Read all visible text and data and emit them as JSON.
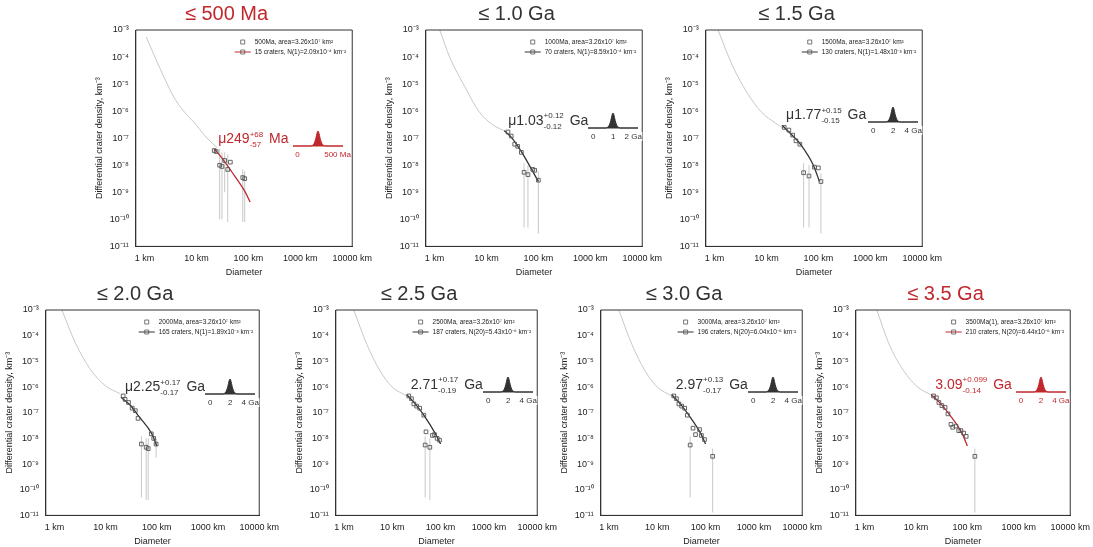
{
  "chart_data": [
    {
      "type": "scatter",
      "title": "≤ 500 Ma",
      "xlabel": "Diameter",
      "ylabel": "Differential crater density, km⁻³",
      "log": "xy",
      "legend": "top right",
      "xlim": [
        0.68,
        10000
      ],
      "ylim": [
        1e-11,
        0.001
      ],
      "xticks": [
        {
          "value": 1,
          "label": "1 km"
        },
        {
          "value": 10,
          "label": "10 km"
        },
        {
          "value": 100,
          "label": "100 km"
        },
        {
          "value": 1000,
          "label": "1000 km"
        },
        {
          "value": 10000,
          "label": "10000 km"
        }
      ],
      "yticks": [
        {
          "value": 1e-11,
          "label": "10⁻¹¹"
        },
        {
          "value": 1e-10,
          "label": "10⁻¹⁰"
        },
        {
          "value": 1e-09,
          "label": "10⁻⁹"
        },
        {
          "value": 1e-08,
          "label": "10⁻⁸"
        },
        {
          "value": 1e-07,
          "label": "10⁻⁷"
        },
        {
          "value": 1e-06,
          "label": "10⁻⁶"
        },
        {
          "value": 1e-05,
          "label": "10⁻⁵"
        },
        {
          "value": 0.0001,
          "label": "10⁻⁴"
        },
        {
          "value": 0.001,
          "label": "10⁻³"
        }
      ],
      "annotations": [
        "μ249$^{+68}$$_{-57}$ Ma",
        "0",
        "500 Ma"
      ],
      "series": [
        {
          "name": "500Ma, area=3.26x10⁷ km²",
          "color": "#555555",
          "marker": "square",
          "x": [
            22,
            24,
            28,
            31,
            35,
            40,
            45,
            78,
            85
          ],
          "values": [
            3.5e-08,
            3.2e-08,
            1e-08,
            9e-09,
            1.5e-08,
            7e-09,
            1.3e-08,
            3.5e-09,
            3.2e-09
          ],
          "errors": [
            null,
            null,
            [
              1e-10,
              4e-08
            ],
            [
              1e-10,
              3e-08
            ],
            [
              1e-09,
              3e-08
            ],
            [
              8e-11,
              2.5e-08
            ],
            null,
            [
              8e-11,
              7e-09
            ],
            [
              8e-11,
              6e-09
            ]
          ]
        },
        {
          "name": "15 craters, N(1)=2.09x10⁻⁴ km⁻²",
          "type": "line",
          "color": "#c0282d",
          "x": [
            22,
            30,
            47,
            85,
            108
          ],
          "values": [
            4e-08,
            2e-08,
            6e-09,
            1.1e-09,
            4.4e-10
          ]
        },
        {
          "type": "line",
          "color": "#c8c8c8",
          "x": [
            1.08,
            2,
            4,
            10,
            16,
            25
          ],
          "values": [
            0.00055,
            3.7e-05,
            2.5e-06,
            3e-07,
            1e-07,
            4.5e-08
          ]
        }
      ]
    },
    {
      "type": "scatter",
      "title": "≤ 1.0 Ga",
      "xlabel": "Diameter",
      "ylabel": "Differential crater density, km⁻³",
      "log": "xy",
      "legend": "top right",
      "xlim": [
        0.68,
        10000
      ],
      "ylim": [
        1e-11,
        0.001
      ],
      "xticks": [
        {
          "value": 1,
          "label": "1 km"
        },
        {
          "value": 10,
          "label": "10 km"
        },
        {
          "value": 100,
          "label": "100 km"
        },
        {
          "value": 1000,
          "label": "1000 km"
        },
        {
          "value": 10000,
          "label": "10000 km"
        }
      ],
      "yticks": [
        {
          "value": 1e-11,
          "label": "10⁻¹¹"
        },
        {
          "value": 1e-10,
          "label": "10⁻¹⁰"
        },
        {
          "value": 1e-09,
          "label": "10⁻⁹"
        },
        {
          "value": 1e-08,
          "label": "10⁻⁸"
        },
        {
          "value": 1e-07,
          "label": "10⁻⁷"
        },
        {
          "value": 1e-06,
          "label": "10⁻⁶"
        },
        {
          "value": 1e-05,
          "label": "10⁻⁵"
        },
        {
          "value": 0.0001,
          "label": "10⁻⁴"
        },
        {
          "value": 0.001,
          "label": "10⁻³"
        }
      ],
      "annotations": [
        "μ1.03$^{+0.12}$$_{-0.12}$ Ga",
        "0",
        "1",
        "2 Ga"
      ],
      "series": [
        {
          "name": "1000Ma, area=3.26x10⁷ km²",
          "color": "#555555",
          "marker": "square",
          "x": [
            26,
            30,
            35,
            40,
            47,
            53,
            63,
            78,
            85,
            100
          ],
          "values": [
            1.7e-07,
            1.2e-07,
            6e-08,
            5e-08,
            3e-08,
            5.5e-09,
            4.5e-09,
            7e-09,
            6.5e-09,
            2.8e-09
          ],
          "errors": [
            null,
            null,
            null,
            null,
            null,
            [
              5e-11,
              1.2e-08
            ],
            [
              5e-11,
              1e-08
            ],
            null,
            null,
            [
              3e-11,
              6e-09
            ]
          ]
        },
        {
          "name": "70 craters, N(1)=8.59x10⁻⁴ km⁻²",
          "type": "line",
          "color": "#333333",
          "x": [
            22,
            30,
            47,
            100
          ],
          "values": [
            1.9e-07,
            1.1e-07,
            3.2e-08,
            2.5e-09
          ]
        },
        {
          "type": "line",
          "color": "#c8c8c8",
          "x": [
            1.26,
            2,
            3.8,
            7.1,
            13,
            25
          ],
          "values": [
            0.001,
            9e-05,
            8.3e-06,
            1e-06,
            3.2e-07,
            1.7e-07
          ]
        }
      ]
    },
    {
      "type": "scatter",
      "title": "≤ 1.5 Ga",
      "xlabel": "Diameter",
      "ylabel": "Differential crater density, km⁻³",
      "log": "xy",
      "legend": "top right",
      "xlim": [
        0.68,
        10000
      ],
      "ylim": [
        1e-11,
        0.001
      ],
      "xticks": [
        {
          "value": 1,
          "label": "1 km"
        },
        {
          "value": 10,
          "label": "10 km"
        },
        {
          "value": 100,
          "label": "100 km"
        },
        {
          "value": 1000,
          "label": "1000 km"
        },
        {
          "value": 10000,
          "label": "10000 km"
        }
      ],
      "yticks": [
        {
          "value": 1e-11,
          "label": "10⁻¹¹"
        },
        {
          "value": 1e-10,
          "label": "10⁻¹⁰"
        },
        {
          "value": 1e-09,
          "label": "10⁻⁹"
        },
        {
          "value": 1e-08,
          "label": "10⁻⁸"
        },
        {
          "value": 1e-07,
          "label": "10⁻⁷"
        },
        {
          "value": 1e-06,
          "label": "10⁻⁶"
        },
        {
          "value": 1e-05,
          "label": "10⁻⁵"
        },
        {
          "value": 0.0001,
          "label": "10⁻⁴"
        },
        {
          "value": 0.001,
          "label": "10⁻³"
        }
      ],
      "annotations": [
        "μ1.77$^{+0.15}$$_{-0.15}$ Ga",
        "0",
        "2",
        "4 Ga"
      ],
      "series": [
        {
          "name": "1500Ma, area=3.26x10⁷ km²",
          "color": "#555555",
          "marker": "square",
          "x": [
            22,
            27,
            32,
            37,
            44,
            52,
            66,
            84,
            100,
            112
          ],
          "values": [
            2.5e-07,
            2e-07,
            1.3e-07,
            8e-08,
            6e-08,
            5.3e-09,
            4e-09,
            8.5e-09,
            8e-09,
            2.5e-09
          ],
          "errors": [
            null,
            null,
            null,
            null,
            null,
            [
              5e-11,
              1.2e-08
            ],
            [
              5e-11,
              1e-08
            ],
            null,
            null,
            [
              3e-11,
              5e-09
            ]
          ]
        },
        {
          "name": "130 craters, N(1)=1.48x10⁻³ km⁻²",
          "type": "line",
          "color": "#333333",
          "x": [
            20,
            30,
            45,
            80,
            105
          ],
          "values": [
            3e-07,
            1.4e-07,
            6e-08,
            1e-08,
            2.5e-09
          ]
        },
        {
          "type": "line",
          "color": "#c8c8c8",
          "x": [
            1.17,
            2.2,
            4.3,
            8.1,
            15,
            21
          ],
          "values": [
            0.001,
            5e-05,
            4.6e-06,
            9e-07,
            3.6e-07,
            2.3e-07
          ]
        }
      ]
    },
    {
      "type": "scatter",
      "title": "≤ 2.0 Ga",
      "xlabel": "Diameter",
      "ylabel": "Differential crater density, km⁻³",
      "log": "xy",
      "legend": "top right",
      "xlim": [
        0.68,
        10000
      ],
      "ylim": [
        1e-11,
        0.001
      ],
      "xticks": [
        {
          "value": 1,
          "label": "1 km"
        },
        {
          "value": 10,
          "label": "10 km"
        },
        {
          "value": 100,
          "label": "100 km"
        },
        {
          "value": 1000,
          "label": "1000 km"
        },
        {
          "value": 10000,
          "label": "10000 km"
        }
      ],
      "yticks": [
        {
          "value": 1e-11,
          "label": "10⁻¹¹"
        },
        {
          "value": 1e-10,
          "label": "10⁻¹⁰"
        },
        {
          "value": 1e-09,
          "label": "10⁻⁹"
        },
        {
          "value": 1e-08,
          "label": "10⁻⁸"
        },
        {
          "value": 1e-07,
          "label": "10⁻⁷"
        },
        {
          "value": 1e-06,
          "label": "10⁻⁶"
        },
        {
          "value": 1e-05,
          "label": "10⁻⁵"
        },
        {
          "value": 0.0001,
          "label": "10⁻⁴"
        },
        {
          "value": 0.001,
          "label": "10⁻³"
        }
      ],
      "annotations": [
        "μ2.25$^{+0.17}$$_{-0.17}$ Ga",
        "0",
        "2",
        "4 Ga"
      ],
      "series": [
        {
          "name": "2000Ma, area=3.26x10⁷ km²",
          "color": "#555555",
          "marker": "square",
          "x": [
            22,
            24,
            28,
            33,
            38,
            43,
            50,
            62,
            68,
            78,
            87,
            97
          ],
          "values": [
            4.5e-07,
            3.3e-07,
            2.5e-07,
            1.5e-07,
            1.2e-07,
            6e-08,
            6e-09,
            4.5e-09,
            4e-09,
            1.5e-08,
            1e-08,
            6e-09
          ],
          "errors": [
            null,
            null,
            null,
            null,
            null,
            null,
            [
              5e-11,
              1.2e-08
            ],
            [
              4e-11,
              1e-08
            ],
            [
              4e-11,
              1e-08
            ],
            null,
            null,
            [
              1.8e-09,
              1e-08
            ]
          ]
        },
        {
          "name": "165 craters, N(1)=1.89x10⁻³ km⁻²",
          "type": "line",
          "color": "#333333",
          "x": [
            20,
            30,
            45,
            80,
            100
          ],
          "values": [
            4e-07,
            2e-07,
            7e-08,
            1.5e-08,
            5e-09
          ]
        },
        {
          "type": "line",
          "color": "#c8c8c8",
          "x": [
            1.4,
            2.6,
            5,
            10,
            19
          ],
          "values": [
            0.001,
            5e-05,
            5e-06,
            1.1e-06,
            5.6e-07
          ]
        }
      ]
    },
    {
      "type": "scatter",
      "title": "≤ 2.5 Ga",
      "xlabel": "Diameter",
      "ylabel": "Differential crater density, km⁻³",
      "log": "xy",
      "legend": "top right",
      "xlim": [
        0.68,
        10000
      ],
      "ylim": [
        1e-11,
        0.001
      ],
      "xticks": [
        {
          "value": 1,
          "label": "1 km"
        },
        {
          "value": 10,
          "label": "10 km"
        },
        {
          "value": 100,
          "label": "100 km"
        },
        {
          "value": 1000,
          "label": "1000 km"
        },
        {
          "value": 10000,
          "label": "10000 km"
        }
      ],
      "yticks": [
        {
          "value": 1e-11,
          "label": "10⁻¹¹"
        },
        {
          "value": 1e-10,
          "label": "10⁻¹⁰"
        },
        {
          "value": 1e-09,
          "label": "10⁻⁹"
        },
        {
          "value": 1e-08,
          "label": "10⁻⁸"
        },
        {
          "value": 1e-07,
          "label": "10⁻⁷"
        },
        {
          "value": 1e-06,
          "label": "10⁻⁶"
        },
        {
          "value": 1e-05,
          "label": "10⁻⁵"
        },
        {
          "value": 0.0001,
          "label": "10⁻⁴"
        },
        {
          "value": 0.001,
          "label": "10⁻³"
        }
      ],
      "annotations": [
        "2.71$^{+0.17}$$_{-0.19}$ Ga",
        "0",
        "2",
        "4 Ga"
      ],
      "series": [
        {
          "name": "2500Ma, area=3.26x10⁷ km²",
          "color": "#555555",
          "marker": "square",
          "x": [
            22,
            25,
            28,
            32,
            37,
            45,
            50,
            48,
            60,
            68,
            75,
            85,
            95
          ],
          "values": [
            4.5e-07,
            3.5e-07,
            2.2e-07,
            1.8e-07,
            1.5e-07,
            8e-08,
            1.8e-08,
            5.5e-09,
            4.5e-09,
            1.3e-08,
            1.4e-08,
            1e-08,
            8.5e-09
          ],
          "errors": [
            null,
            null,
            null,
            null,
            null,
            null,
            null,
            [
              5e-11,
              1.2e-08
            ],
            [
              4e-11,
              1e-08
            ],
            null,
            null,
            null,
            null
          ]
        },
        {
          "name": "187 craters, N(20)=5.43x10⁻⁶ km⁻²",
          "type": "line",
          "color": "#333333",
          "x": [
            20,
            30,
            45,
            80,
            100
          ],
          "values": [
            5e-07,
            2.2e-07,
            8e-08,
            1.4e-08,
            6e-09
          ]
        },
        {
          "type": "line",
          "color": "#c8c8c8",
          "x": [
            1.6,
            3,
            5.5,
            10,
            20
          ],
          "values": [
            0.001,
            4.5e-05,
            4.5e-06,
            1e-06,
            4.5e-07
          ]
        }
      ]
    },
    {
      "type": "scatter",
      "title": "≤ 3.0 Ga",
      "xlabel": "Diameter",
      "ylabel": "Differential crater density, km⁻³",
      "log": "xy",
      "legend": "top right",
      "xlim": [
        0.68,
        10000
      ],
      "ylim": [
        1e-11,
        0.001
      ],
      "xticks": [
        {
          "value": 1,
          "label": "1 km"
        },
        {
          "value": 10,
          "label": "10 km"
        },
        {
          "value": 100,
          "label": "100 km"
        },
        {
          "value": 1000,
          "label": "1000 km"
        },
        {
          "value": 10000,
          "label": "10000 km"
        }
      ],
      "yticks": [
        {
          "value": 1e-11,
          "label": "10⁻¹¹"
        },
        {
          "value": 1e-10,
          "label": "10⁻¹⁰"
        },
        {
          "value": 1e-09,
          "label": "10⁻⁹"
        },
        {
          "value": 1e-08,
          "label": "10⁻⁸"
        },
        {
          "value": 1e-07,
          "label": "10⁻⁷"
        },
        {
          "value": 1e-06,
          "label": "10⁻⁶"
        },
        {
          "value": 1e-05,
          "label": "10⁻⁵"
        },
        {
          "value": 0.0001,
          "label": "10⁻⁴"
        },
        {
          "value": 0.001,
          "label": "10⁻³"
        }
      ],
      "annotations": [
        "2.97$^{+0.13}$$_{-0.17}$ Ga",
        "0",
        "2",
        "4 Ga"
      ],
      "series": [
        {
          "name": "3000Ma, area=3.26x10⁷ km²",
          "color": "#555555",
          "marker": "square",
          "x": [
            22,
            25,
            28,
            32,
            37,
            42,
            55,
            48,
            62,
            75,
            82,
            95,
            140
          ],
          "values": [
            4.5e-07,
            3.5e-07,
            2.2e-07,
            1.8e-07,
            1.5e-07,
            8e-08,
            2.5e-08,
            5.5e-09,
            1.4e-08,
            2.2e-08,
            1.3e-08,
            9e-09,
            2e-09
          ],
          "errors": [
            null,
            null,
            null,
            null,
            null,
            null,
            null,
            [
              5e-11,
              1.2e-08
            ],
            null,
            null,
            null,
            null,
            [
              1.3e-11,
              4e-09
            ]
          ]
        },
        {
          "name": "196 craters, N(20)=6.04x10⁻⁶ km⁻²",
          "type": "line",
          "color": "#333333",
          "x": [
            20,
            30,
            45,
            80,
            100
          ],
          "values": [
            5e-07,
            2.2e-07,
            8e-08,
            1.5e-08,
            6e-09
          ]
        },
        {
          "type": "line",
          "color": "#c8c8c8",
          "x": [
            1.6,
            3,
            5.5,
            10,
            20
          ],
          "values": [
            0.001,
            4.5e-05,
            4.5e-06,
            1e-06,
            4.5e-07
          ]
        }
      ]
    },
    {
      "type": "scatter",
      "title": "≤ 3.5 Ga",
      "xlabel": "Diameter",
      "ylabel": "Differential crater density, km⁻³",
      "log": "xy",
      "legend": "top right",
      "xlim": [
        0.68,
        10000
      ],
      "ylim": [
        1e-11,
        0.001
      ],
      "xticks": [
        {
          "value": 1,
          "label": "1 km"
        },
        {
          "value": 10,
          "label": "10 km"
        },
        {
          "value": 100,
          "label": "100 km"
        },
        {
          "value": 1000,
          "label": "1000 km"
        },
        {
          "value": 10000,
          "label": "10000 km"
        }
      ],
      "yticks": [
        {
          "value": 1e-11,
          "label": "10⁻¹¹"
        },
        {
          "value": 1e-10,
          "label": "10⁻¹⁰"
        },
        {
          "value": 1e-09,
          "label": "10⁻⁹"
        },
        {
          "value": 1e-08,
          "label": "10⁻⁸"
        },
        {
          "value": 1e-07,
          "label": "10⁻⁷"
        },
        {
          "value": 1e-06,
          "label": "10⁻⁶"
        },
        {
          "value": 1e-05,
          "label": "10⁻⁵"
        },
        {
          "value": 0.0001,
          "label": "10⁻⁴"
        },
        {
          "value": 0.001,
          "label": "10⁻³"
        }
      ],
      "annotations": [
        "3.09$^{+0.099}$$_{-0.14}$ Ga",
        "0",
        "2",
        "4 Ga"
      ],
      "series": [
        {
          "name": "3500Ma(1), area=3.26x10⁷ km²",
          "color": "#555555",
          "marker": "square",
          "x": [
            22,
            25,
            28,
            32,
            37,
            42,
            48,
            52,
            60,
            68,
            75,
            85,
            95,
            140
          ],
          "values": [
            4.5e-07,
            3.8e-07,
            2.5e-07,
            1.9e-07,
            1.6e-07,
            9e-08,
            3.5e-08,
            2.7e-08,
            3e-08,
            2e-08,
            2e-08,
            1.6e-08,
            1.2e-08,
            2e-09
          ],
          "errors": [
            null,
            null,
            null,
            null,
            null,
            null,
            null,
            null,
            null,
            null,
            null,
            null,
            null,
            [
              1.3e-11,
              4e-09
            ]
          ]
        },
        {
          "name": "210 craters, N(20)=6.44x10⁻⁶ km⁻²",
          "type": "line",
          "color": "#c0282d",
          "x": [
            20,
            30,
            45,
            80,
            100
          ],
          "values": [
            5e-07,
            2.3e-07,
            8.5e-08,
            1.5e-08,
            5e-09
          ]
        },
        {
          "type": "line",
          "color": "#c8c8c8",
          "x": [
            1.74,
            3,
            5.7,
            10.8,
            20.4
          ],
          "values": [
            0.001,
            4.8e-05,
            4.5e-06,
            1e-06,
            4.8e-07
          ]
        }
      ]
    }
  ]
}
